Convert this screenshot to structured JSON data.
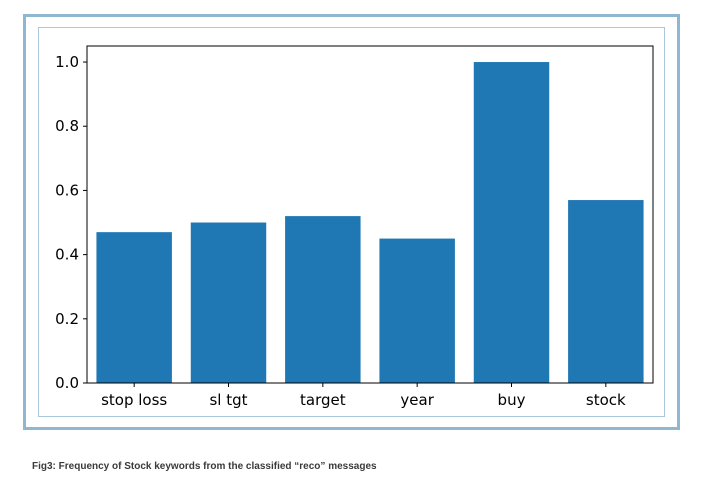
{
  "figure": {
    "caption": "Fig3: Frequency of Stock keywords from the classified “reco” messages",
    "frame_color": "#8fb8d0"
  },
  "chart_data": {
    "type": "bar",
    "title": "",
    "xlabel": "",
    "ylabel": "",
    "categories": [
      "stop loss",
      "sl tgt",
      "target",
      "year",
      "buy",
      "stock"
    ],
    "values": [
      0.47,
      0.5,
      0.52,
      0.45,
      1.0,
      0.57
    ],
    "ylim": [
      0,
      1.05
    ],
    "yticks": [
      0.0,
      0.2,
      0.4,
      0.6,
      0.8,
      1.0
    ],
    "ytick_labels": [
      "0.0",
      "0.2",
      "0.4",
      "0.6",
      "0.8",
      "1.0"
    ],
    "bar_color": "#1f77b4",
    "grid": false,
    "legend": "none"
  }
}
